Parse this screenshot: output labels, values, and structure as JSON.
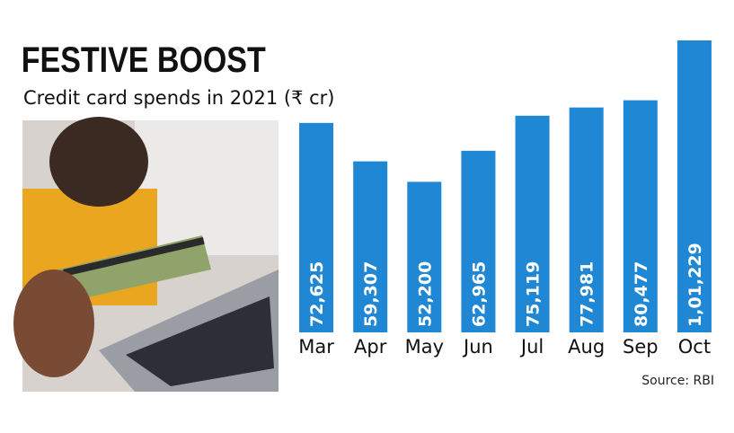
{
  "chart_data": {
    "type": "bar",
    "title": "FESTIVE BOOST",
    "subtitle": "Credit card spends in 2021 (₹ cr)",
    "categories": [
      "Mar",
      "Apr",
      "May",
      "Jun",
      "Jul",
      "Aug",
      "Sep",
      "Oct"
    ],
    "values": [
      72625,
      59307,
      52200,
      62965,
      75119,
      77981,
      80477,
      101229
    ],
    "value_labels": [
      "72,625",
      "59,307",
      "52,200",
      "62,965",
      "75,119",
      "77,981",
      "80,477",
      "1,01,229"
    ],
    "color": "#1f87d4",
    "source": "Source: RBI"
  }
}
